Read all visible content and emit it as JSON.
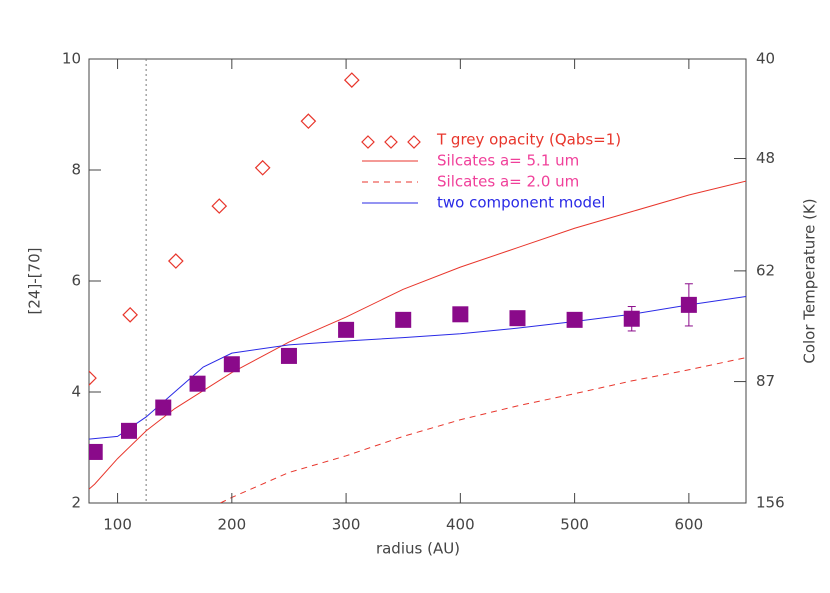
{
  "chart_data": {
    "type": "line",
    "xlabel": "radius (AU)",
    "ylabel": "[24]-[70]",
    "y2label": "Color Temperature (K)",
    "xlim": [
      75,
      650
    ],
    "xticks": [
      100,
      200,
      300,
      400,
      500,
      600
    ],
    "ylim": [
      2,
      10
    ],
    "yticks": [
      2,
      4,
      6,
      8,
      10
    ],
    "y2lim": [
      156,
      40
    ],
    "y2scale": "reciprocal",
    "y2ticks": [
      156,
      87,
      62,
      48,
      40
    ],
    "vline": 125,
    "legend": "top",
    "series": [
      {
        "name": "T grey opacity (Qabs=1)",
        "kind": "diamonds",
        "color": "#e8362c",
        "x": [
          75,
          111,
          151,
          189,
          227,
          267,
          305
        ],
        "values": [
          4.25,
          5.39,
          6.36,
          7.35,
          8.04,
          8.88,
          9.62
        ]
      },
      {
        "name": "Silcates a= 5.1 um",
        "kind": "solid",
        "color": "#e8362c",
        "label_color": "#f0409a",
        "x": [
          75,
          80,
          100,
          125,
          150,
          200,
          250,
          300,
          350,
          400,
          450,
          500,
          550,
          600,
          650
        ],
        "values": [
          2.25,
          2.34,
          2.8,
          3.3,
          3.7,
          4.35,
          4.9,
          5.35,
          5.85,
          6.25,
          6.6,
          6.95,
          7.25,
          7.55,
          7.8
        ]
      },
      {
        "name": "Silcates a= 2.0 um",
        "kind": "dashed",
        "color": "#e8362c",
        "label_color": "#f0409a",
        "x": [
          190,
          200,
          250,
          300,
          350,
          400,
          450,
          500,
          550,
          600,
          650
        ],
        "values": [
          2.0,
          2.1,
          2.55,
          2.85,
          3.2,
          3.5,
          3.75,
          3.97,
          4.2,
          4.4,
          4.62
        ]
      },
      {
        "name": "two component model",
        "kind": "solid",
        "color": "#2a2ae6",
        "x": [
          75,
          100,
          125,
          150,
          175,
          200,
          250,
          300,
          350,
          400,
          450,
          500,
          550,
          600,
          650
        ],
        "values": [
          3.15,
          3.2,
          3.55,
          4.0,
          4.45,
          4.7,
          4.85,
          4.92,
          4.98,
          5.05,
          5.15,
          5.27,
          5.4,
          5.57,
          5.72
        ]
      },
      {
        "kind": "squares",
        "color": "#8a0a8a",
        "x": [
          80,
          110,
          140,
          170,
          200,
          250,
          300,
          350,
          400,
          450,
          500,
          550,
          600
        ],
        "values": [
          2.92,
          3.3,
          3.72,
          4.15,
          4.5,
          4.65,
          5.12,
          5.3,
          5.4,
          5.33,
          5.3,
          5.32,
          5.57
        ],
        "errors": [
          0.05,
          0.05,
          0.05,
          0.05,
          0.05,
          0.05,
          0.05,
          0.05,
          0.05,
          0.05,
          0.12,
          0.22,
          0.38
        ]
      }
    ]
  }
}
